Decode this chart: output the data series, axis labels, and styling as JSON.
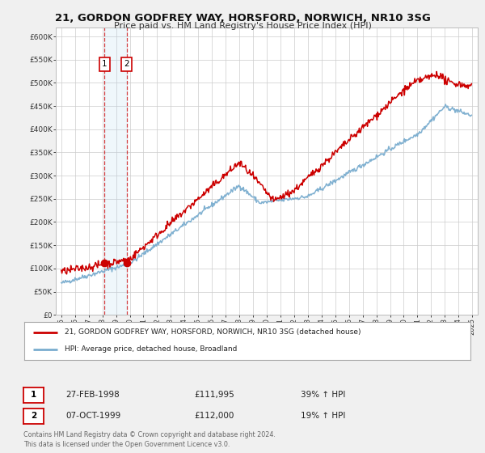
{
  "title": "21, GORDON GODFREY WAY, HORSFORD, NORWICH, NR10 3SG",
  "subtitle": "Price paid vs. HM Land Registry's House Price Index (HPI)",
  "xlim_left": 1994.6,
  "xlim_right": 2025.4,
  "ylim_bottom": 0,
  "ylim_top": 620000,
  "yticks": [
    0,
    50000,
    100000,
    150000,
    200000,
    250000,
    300000,
    350000,
    400000,
    450000,
    500000,
    550000,
    600000
  ],
  "ytick_labels": [
    "£0",
    "£50K",
    "£100K",
    "£150K",
    "£200K",
    "£250K",
    "£300K",
    "£350K",
    "£400K",
    "£450K",
    "£500K",
    "£550K",
    "£600K"
  ],
  "xticks": [
    1995,
    1996,
    1997,
    1998,
    1999,
    2000,
    2001,
    2002,
    2003,
    2004,
    2005,
    2006,
    2007,
    2008,
    2009,
    2010,
    2011,
    2012,
    2013,
    2014,
    2015,
    2016,
    2017,
    2018,
    2019,
    2020,
    2021,
    2022,
    2023,
    2024,
    2025
  ],
  "property_color": "#cc0000",
  "hpi_color": "#7aadcf",
  "sale1_x": 1998.15,
  "sale1_y": 111995,
  "sale2_x": 1999.77,
  "sale2_y": 112000,
  "vline1_x": 1998.15,
  "vline2_x": 1999.77,
  "shade_x1": 1998.15,
  "shade_x2": 1999.77,
  "legend_label1": "21, GORDON GODFREY WAY, HORSFORD, NORWICH, NR10 3SG (detached house)",
  "legend_label2": "HPI: Average price, detached house, Broadland",
  "transaction1_label": "1",
  "transaction1_date": "27-FEB-1998",
  "transaction1_price": "£111,995",
  "transaction1_hpi": "39% ↑ HPI",
  "transaction2_label": "2",
  "transaction2_date": "07-OCT-1999",
  "transaction2_price": "£112,000",
  "transaction2_hpi": "19% ↑ HPI",
  "footer": "Contains HM Land Registry data © Crown copyright and database right 2024.\nThis data is licensed under the Open Government Licence v3.0.",
  "background_color": "#f0f0f0",
  "plot_bg_color": "#ffffff"
}
